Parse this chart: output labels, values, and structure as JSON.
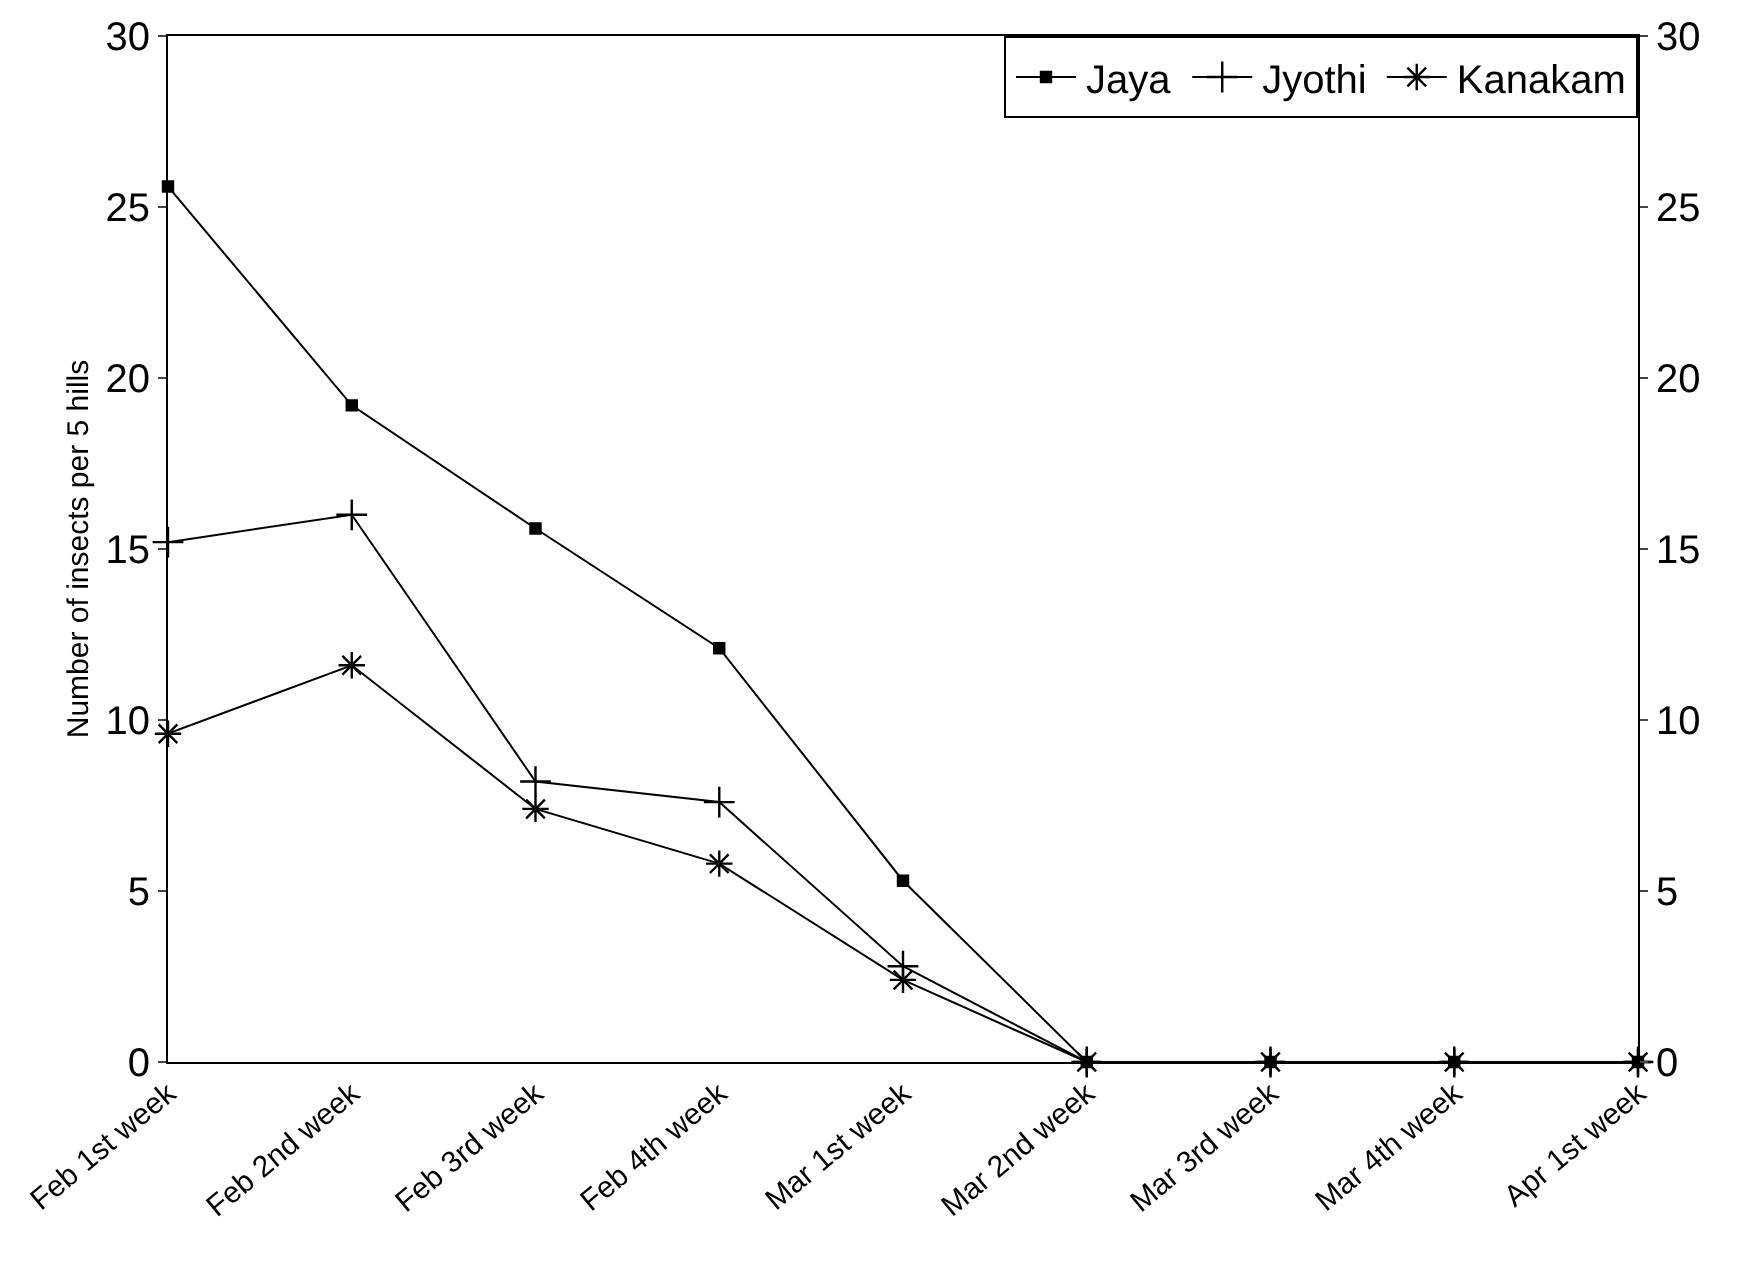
{
  "chart_data": {
    "type": "line",
    "ylabel": "Number of insects per 5 hills",
    "categories": [
      "Feb 1st week",
      "Feb 2nd week",
      "Feb 3rd week",
      "Feb 4th week",
      "Mar 1st week",
      "Mar 2nd week",
      "Mar 3rd week",
      "Mar 4th week",
      "Apr 1st week"
    ],
    "series": [
      {
        "name": "Jaya",
        "color": "#000000",
        "marker": "square",
        "values": [
          25.6,
          19.2,
          15.6,
          12.1,
          5.3,
          0,
          0,
          0,
          0
        ]
      },
      {
        "name": "Jyothi",
        "color": "#000000",
        "marker": "cross",
        "values": [
          15.2,
          16.0,
          8.2,
          7.6,
          2.8,
          0,
          0,
          0,
          0
        ]
      },
      {
        "name": "Kanakam",
        "color": "#000000",
        "marker": "cross",
        "values": [
          9.6,
          11.6,
          7.4,
          5.8,
          2.4,
          0,
          0,
          0,
          0
        ]
      }
    ],
    "ylim": [
      0,
      30
    ],
    "yticks": [
      0,
      5,
      10,
      15,
      20,
      25,
      30
    ],
    "y2lim": [
      0,
      30
    ],
    "y2ticks": [
      0,
      5,
      10,
      15,
      20,
      25,
      30
    ],
    "grid": false,
    "legend": "top right",
    "line_style": "solid"
  }
}
